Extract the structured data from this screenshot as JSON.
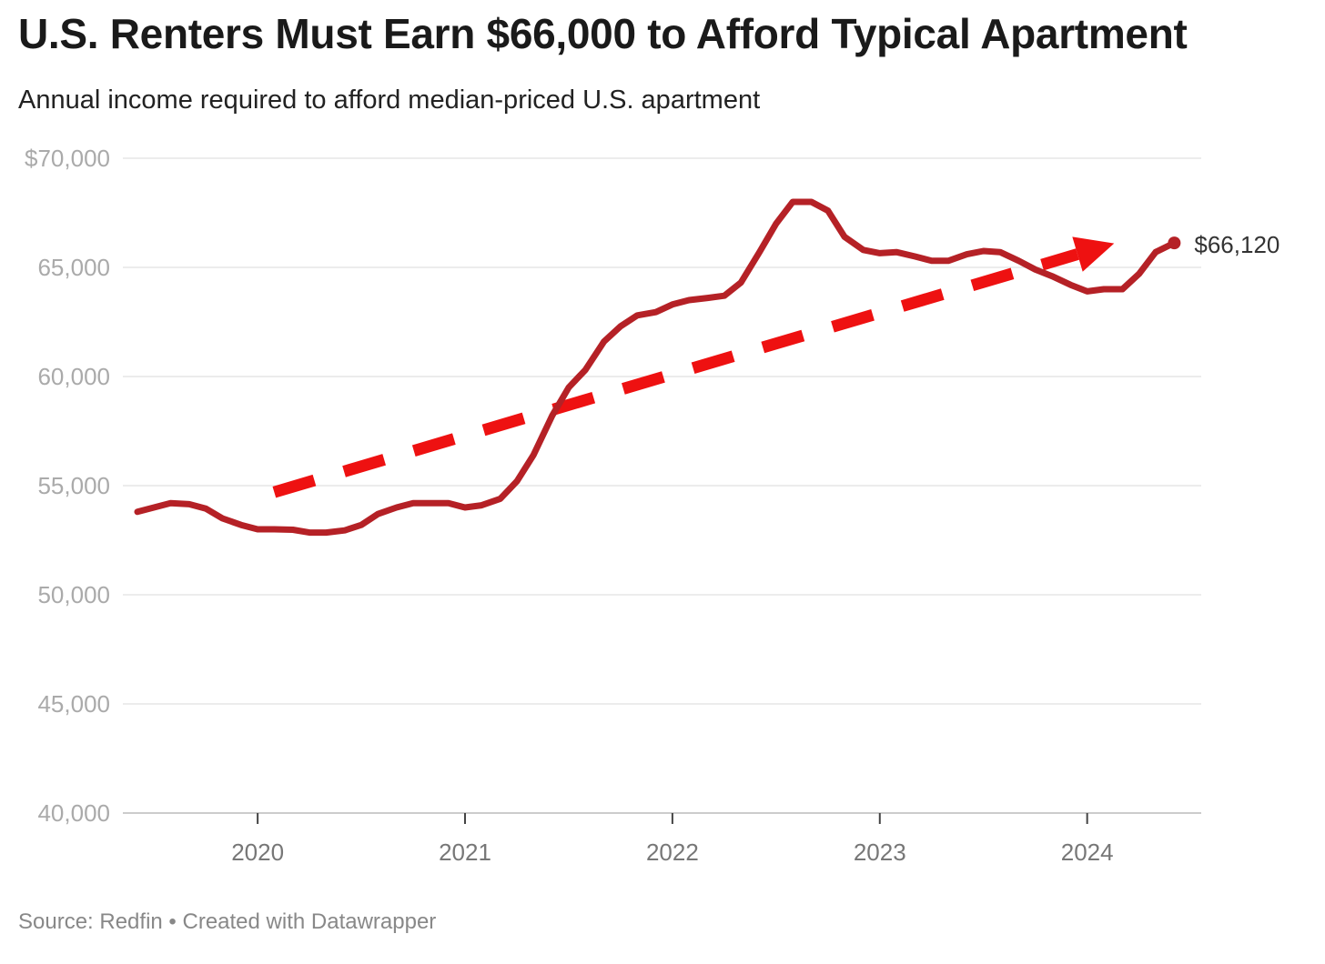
{
  "chart_data": {
    "type": "line",
    "title": "U.S. Renters Must Earn $66,000 to Afford Typical Apartment",
    "subtitle": "Annual income required to afford median-priced U.S. apartment",
    "source": "Source: Redfin • Created with Datawrapper",
    "ylim": [
      40000,
      70000
    ],
    "xlim": [
      2019.35,
      2024.55
    ],
    "grid": true,
    "y_ticks": [
      {
        "value": 70000,
        "label": "$70,000"
      },
      {
        "value": 65000,
        "label": "65,000"
      },
      {
        "value": 60000,
        "label": "60,000"
      },
      {
        "value": 55000,
        "label": "55,000"
      },
      {
        "value": 50000,
        "label": "50,000"
      },
      {
        "value": 45000,
        "label": "45,000"
      },
      {
        "value": 40000,
        "label": "40,000"
      }
    ],
    "x_ticks": [
      {
        "value": 2020,
        "label": "2020"
      },
      {
        "value": 2021,
        "label": "2021"
      },
      {
        "value": 2022,
        "label": "2022"
      },
      {
        "value": 2023,
        "label": "2023"
      },
      {
        "value": 2024,
        "label": "2024"
      }
    ],
    "series": [
      {
        "color": "#b52126",
        "x": [
          2019.42,
          2019.5,
          2019.58,
          2019.67,
          2019.75,
          2019.83,
          2019.92,
          2020.0,
          2020.08,
          2020.17,
          2020.25,
          2020.33,
          2020.42,
          2020.5,
          2020.58,
          2020.67,
          2020.75,
          2020.83,
          2020.92,
          2021.0,
          2021.08,
          2021.17,
          2021.25,
          2021.33,
          2021.42,
          2021.5,
          2021.58,
          2021.67,
          2021.75,
          2021.83,
          2021.92,
          2022.0,
          2022.08,
          2022.17,
          2022.25,
          2022.33,
          2022.42,
          2022.5,
          2022.58,
          2022.67,
          2022.75,
          2022.83,
          2022.92,
          2023.0,
          2023.08,
          2023.17,
          2023.25,
          2023.33,
          2023.42,
          2023.5,
          2023.58,
          2023.67,
          2023.75,
          2023.83,
          2023.92,
          2024.0,
          2024.08,
          2024.17,
          2024.25,
          2024.33,
          2024.42
        ],
        "values": [
          53800,
          54000,
          54200,
          54150,
          53950,
          53500,
          53200,
          53000,
          53000,
          52980,
          52850,
          52850,
          52950,
          53200,
          53700,
          54000,
          54200,
          54200,
          54200,
          54000,
          54100,
          54400,
          55200,
          56400,
          58200,
          59500,
          60300,
          61600,
          62300,
          62800,
          62950,
          63300,
          63500,
          63600,
          63700,
          64300,
          65700,
          67000,
          68000,
          68000,
          67600,
          66400,
          65800,
          65650,
          65700,
          65500,
          65300,
          65300,
          65600,
          65750,
          65700,
          65300,
          64900,
          64600,
          64200,
          63900,
          64000,
          64000,
          64700,
          65700,
          66120
        ]
      }
    ],
    "end_label": "$66,120",
    "annotations": [
      {
        "type": "trend-arrow",
        "color": "#ee1111",
        "x_start": 2020.08,
        "y_start": 54700,
        "x_end": 2024.13,
        "y_end": 66100
      }
    ]
  }
}
